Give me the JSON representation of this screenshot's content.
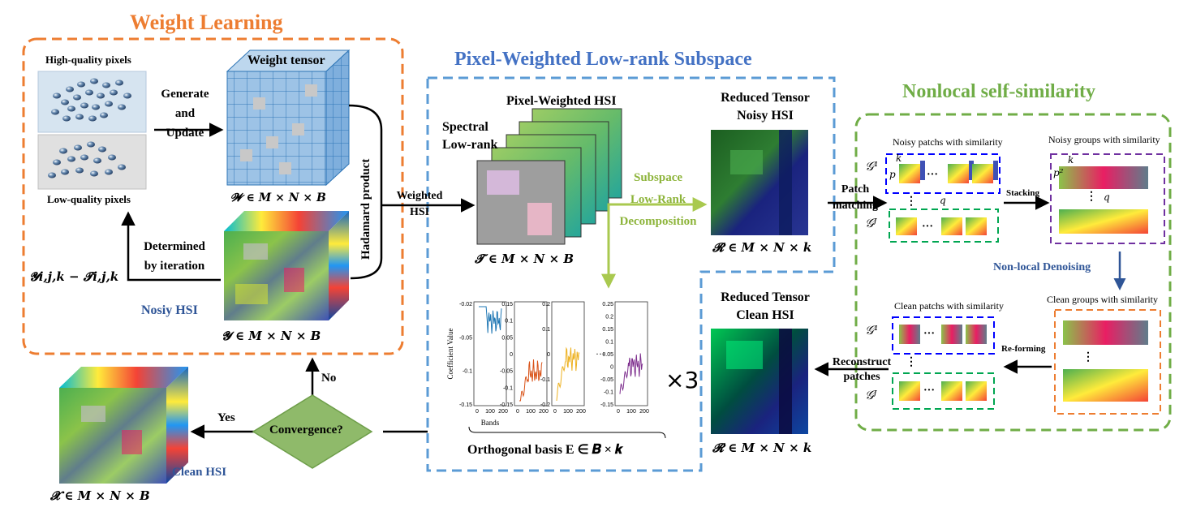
{
  "colors": {
    "orange": "#ED7D31",
    "blue": "#4472C4",
    "green": "#70AD47",
    "lightgreen": "#A9C94F",
    "dark_blue_text": "#2F5597",
    "diamond": "#8FBA6A"
  },
  "weight_learning": {
    "title": "Weight Learning",
    "high_quality": "High-quality pixels",
    "low_quality": "Low-quality pixels",
    "weight_tensor": "Weight tensor",
    "generate": "Generate",
    "and": "and",
    "update": "Update",
    "w_formula": "𝓦 ∈ 𝑴 × 𝑵 × 𝑩",
    "hadamard": "Hadamard product",
    "determined": "Determined",
    "by_iteration": "by iteration",
    "residual": "𝓨𝒊,𝒋,𝒌 − 𝓣𝒊,𝒋,𝒌",
    "noisy_hsi": "Nosiy HSI",
    "y_formula": "𝓨 ∈ 𝑴 × 𝑵 × 𝑩"
  },
  "pwls": {
    "title": "Pixel-Weighted Low-rank Subspace",
    "weighted": "Weighted",
    "hsi": "HSI",
    "pixel_weighted_hsi": "Pixel-Weighted HSI",
    "spectral": "Spectral",
    "low_rank": "Low-rank",
    "t_formula": "𝓣 ∈  𝑴 × 𝑵 × 𝑩",
    "subspace": "Subspace",
    "low_rank2": "Low-Rank",
    "decomposition": "Decomposition",
    "reduced_noisy_1": "Reduced Tensor",
    "reduced_noisy_2": "Noisy HSI",
    "r_formula": "𝓡 ∈ 𝑴 × 𝑵 × 𝒌",
    "basis_label": "Orthogonal basis E ∈ 𝑩 × 𝒌",
    "times3": "×3",
    "ellipsis": "···"
  },
  "basis_plots": {
    "ylabel": "Coefficient  Value",
    "xlabel": "Bands",
    "panels": [
      {
        "color": "#1F77B4",
        "yticks": [
          "-0.02",
          "-0.05",
          "-0.1",
          "-0.15"
        ],
        "xticks": [
          "0",
          "100",
          "200"
        ]
      },
      {
        "color": "#D95319",
        "yticks": [
          "0.15",
          "0.1",
          "0.05",
          "0",
          "-0.05",
          "-0.1",
          "-0.15"
        ],
        "xticks": [
          "0",
          "100",
          "200"
        ]
      },
      {
        "color": "#EDB120",
        "yticks": [
          "0.2",
          "0.1",
          "0",
          "-0.1",
          "-0.2"
        ],
        "xticks": [
          "0",
          "100",
          "200"
        ]
      },
      {
        "color": "#7E2F8E",
        "yticks": [
          "0.25",
          "0.2",
          "0.15",
          "0.1",
          "0.05",
          "0",
          "-0.05",
          "-0.1",
          "-0.15"
        ],
        "xticks": [
          "0",
          "100",
          "200"
        ]
      }
    ]
  },
  "nonlocal": {
    "title": "Nonlocal self-similarity",
    "patch": "Patch",
    "matching": "matching",
    "noisy_patches": "Noisy patchs with similarity",
    "noisy_groups": "Noisy groups with similarity",
    "stacking": "Stacking",
    "non_local_denoising": "Non-local Denoising",
    "clean_patches": "Clean patchs with similarity",
    "clean_groups": "Clean groups with similarity",
    "reforming": "Re-forming",
    "reconstruct": "Reconstruct",
    "patches": "patches",
    "g1": "𝒢¹",
    "gj": "𝒢ᴶ",
    "k": "k",
    "p": "p",
    "p2": "p²",
    "q": "q",
    "dots": "···",
    "vdots": "⋮"
  },
  "clean_section": {
    "reduced_clean_1": "Reduced Tensor",
    "reduced_clean_2": "Clean HSI",
    "r_formula": "𝓡 ∈ 𝑴 × 𝑵 × 𝒌"
  },
  "bottom": {
    "convergence": "Convergence?",
    "yes": "Yes",
    "no": "No",
    "clean_hsi": "Clean HSI",
    "x_formula": "𝓧 ∈ 𝑴 × 𝑵 × 𝑩"
  }
}
